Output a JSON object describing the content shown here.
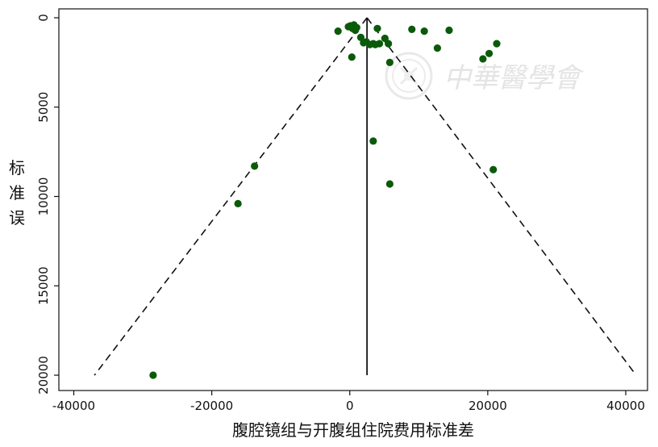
{
  "chart_data": {
    "type": "scatter",
    "subtype": "funnel-plot",
    "title": "",
    "xlabel": "腹腔镜组与开腹组住院费用标准差",
    "ylabel": "标准误",
    "xlim": [
      -40000,
      42000
    ],
    "ylim": [
      0,
      20000
    ],
    "y_reversed": true,
    "x_ticks": [
      -40000,
      -20000,
      0,
      20000,
      40000
    ],
    "x_tick_labels": [
      "-40000",
      "-20000",
      "0",
      "20000",
      "40000"
    ],
    "y_ticks": [
      0,
      5000,
      10000,
      15000,
      20000
    ],
    "y_tick_labels": [
      "0",
      "5000",
      "10000",
      "15000",
      "20000"
    ],
    "grid": false,
    "legend": "none",
    "pooled_estimate": 2500,
    "funnel_limits": {
      "apex": [
        2500,
        0
      ],
      "bottom_left": [
        -37000,
        20000
      ],
      "bottom_right": [
        41500,
        20000
      ]
    },
    "point_color": "#0b5a0b",
    "points": [
      {
        "x": -28500,
        "y": 20000
      },
      {
        "x": -16200,
        "y": 10400
      },
      {
        "x": -13800,
        "y": 8300
      },
      {
        "x": -1700,
        "y": 750
      },
      {
        "x": -200,
        "y": 500
      },
      {
        "x": 100,
        "y": 450
      },
      {
        "x": 400,
        "y": 600
      },
      {
        "x": 600,
        "y": 400
      },
      {
        "x": 800,
        "y": 700
      },
      {
        "x": 1000,
        "y": 550
      },
      {
        "x": 300,
        "y": 2200
      },
      {
        "x": 1600,
        "y": 1100
      },
      {
        "x": 2000,
        "y": 1400
      },
      {
        "x": 2400,
        "y": 1350
      },
      {
        "x": 2900,
        "y": 1500
      },
      {
        "x": 3400,
        "y": 1450
      },
      {
        "x": 3700,
        "y": 1500
      },
      {
        "x": 4000,
        "y": 600
      },
      {
        "x": 4300,
        "y": 1450
      },
      {
        "x": 5100,
        "y": 1150
      },
      {
        "x": 5600,
        "y": 1450
      },
      {
        "x": 5800,
        "y": 2500
      },
      {
        "x": 3400,
        "y": 6900
      },
      {
        "x": 5800,
        "y": 9300
      },
      {
        "x": 9000,
        "y": 650
      },
      {
        "x": 10800,
        "y": 750
      },
      {
        "x": 12700,
        "y": 1700
      },
      {
        "x": 14400,
        "y": 700
      },
      {
        "x": 19300,
        "y": 2300
      },
      {
        "x": 20200,
        "y": 2000
      },
      {
        "x": 21300,
        "y": 1450
      },
      {
        "x": 20800,
        "y": 8500
      }
    ]
  },
  "watermark": {
    "text": "中華醫學會",
    "seal_icon": "cma-seal-icon"
  }
}
